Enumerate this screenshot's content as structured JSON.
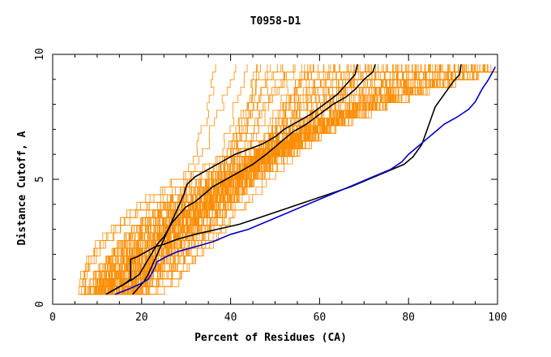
{
  "chart_data": {
    "type": "line",
    "title": "T0958-D1",
    "xlabel": "Percent of Residues (CA)",
    "ylabel": "Distance Cutoff, A",
    "xlim": [
      0,
      100
    ],
    "ylim": [
      0,
      10
    ],
    "x_ticks": [
      "0",
      "20",
      "40",
      "60",
      "80",
      "100"
    ],
    "y_ticks": [
      "0",
      "5",
      "10"
    ],
    "grid": false,
    "legend": "none",
    "colors": {
      "background_series": "#ff8c00",
      "highlight_black": "#000000",
      "highlight_blue": "#0000cc",
      "axis": "#000000"
    },
    "highlight_series": [
      {
        "color": "#000000",
        "points": [
          [
            12,
            0.4
          ],
          [
            14,
            0.6
          ],
          [
            16,
            0.8
          ],
          [
            17.5,
            1.0
          ],
          [
            17.5,
            1.8
          ],
          [
            19,
            1.9
          ],
          [
            21,
            2.1
          ],
          [
            23,
            2.3
          ],
          [
            25,
            2.4
          ],
          [
            28,
            2.6
          ],
          [
            32,
            2.8
          ],
          [
            37,
            3.0
          ],
          [
            42,
            3.2
          ],
          [
            47,
            3.5
          ],
          [
            52,
            3.8
          ],
          [
            57,
            4.1
          ],
          [
            62,
            4.4
          ],
          [
            67,
            4.7
          ],
          [
            71,
            5.0
          ],
          [
            75,
            5.3
          ],
          [
            79,
            5.6
          ],
          [
            81,
            5.9
          ],
          [
            83,
            6.4
          ],
          [
            84,
            6.9
          ],
          [
            85,
            7.4
          ],
          [
            86,
            7.9
          ],
          [
            88,
            8.4
          ],
          [
            90,
            8.9
          ],
          [
            91.5,
            9.2
          ],
          [
            91.8,
            9.6
          ]
        ]
      },
      {
        "color": "#000000",
        "points": [
          [
            18,
            0.4
          ],
          [
            19,
            0.6
          ],
          [
            20.5,
            0.9
          ],
          [
            21.5,
            1.2
          ],
          [
            22.5,
            1.6
          ],
          [
            23.5,
            2.0
          ],
          [
            24.5,
            2.4
          ],
          [
            25.5,
            2.8
          ],
          [
            26.5,
            3.2
          ],
          [
            27.5,
            3.6
          ],
          [
            28.5,
            4.0
          ],
          [
            29.5,
            4.4
          ],
          [
            30,
            4.7
          ],
          [
            30.2,
            4.8
          ],
          [
            32,
            5.1
          ],
          [
            35,
            5.4
          ],
          [
            38,
            5.7
          ],
          [
            41,
            6.0
          ],
          [
            44,
            6.2
          ],
          [
            47,
            6.4
          ],
          [
            50,
            6.7
          ],
          [
            52,
            7.0
          ],
          [
            55,
            7.3
          ],
          [
            58,
            7.6
          ],
          [
            61,
            8.0
          ],
          [
            64,
            8.4
          ],
          [
            66,
            8.8
          ],
          [
            68,
            9.2
          ],
          [
            68.5,
            9.6
          ]
        ]
      },
      {
        "color": "#000000",
        "points": [
          [
            12,
            0.4
          ],
          [
            14,
            0.6
          ],
          [
            16,
            0.8
          ],
          [
            18,
            1.0
          ],
          [
            19.5,
            1.2
          ],
          [
            20.5,
            1.5
          ],
          [
            21.5,
            1.8
          ],
          [
            22.5,
            2.1
          ],
          [
            23.5,
            2.4
          ],
          [
            25,
            2.7
          ],
          [
            26,
            3.0
          ],
          [
            27,
            3.3
          ],
          [
            28.5,
            3.6
          ],
          [
            30,
            3.9
          ],
          [
            32,
            4.1
          ],
          [
            34,
            4.4
          ],
          [
            36,
            4.7
          ],
          [
            39,
            5.0
          ],
          [
            42,
            5.3
          ],
          [
            45,
            5.6
          ],
          [
            48,
            6.0
          ],
          [
            50,
            6.3
          ],
          [
            52,
            6.6
          ],
          [
            54,
            6.9
          ],
          [
            57,
            7.2
          ],
          [
            60,
            7.6
          ],
          [
            63,
            8.0
          ],
          [
            66,
            8.3
          ],
          [
            68,
            8.6
          ],
          [
            70,
            9.0
          ],
          [
            72,
            9.3
          ],
          [
            72.5,
            9.6
          ]
        ]
      },
      {
        "color": "#0000cc",
        "points": [
          [
            14,
            0.4
          ],
          [
            17,
            0.6
          ],
          [
            19.5,
            0.8
          ],
          [
            21.5,
            1.0
          ],
          [
            22.5,
            1.3
          ],
          [
            23.5,
            1.7
          ],
          [
            25.5,
            1.9
          ],
          [
            28,
            2.1
          ],
          [
            32,
            2.3
          ],
          [
            36,
            2.5
          ],
          [
            40,
            2.8
          ],
          [
            44,
            3.0
          ],
          [
            48,
            3.3
          ],
          [
            52,
            3.6
          ],
          [
            56,
            3.9
          ],
          [
            60,
            4.2
          ],
          [
            64,
            4.5
          ],
          [
            68,
            4.8
          ],
          [
            72,
            5.1
          ],
          [
            76,
            5.4
          ],
          [
            78.5,
            5.7
          ],
          [
            80,
            6.0
          ],
          [
            82,
            6.3
          ],
          [
            84,
            6.6
          ],
          [
            86,
            6.9
          ],
          [
            88,
            7.2
          ],
          [
            91,
            7.5
          ],
          [
            93.5,
            7.8
          ],
          [
            95,
            8.1
          ],
          [
            96.5,
            8.6
          ],
          [
            98,
            9.0
          ],
          [
            99.5,
            9.5
          ]
        ]
      }
    ]
  }
}
